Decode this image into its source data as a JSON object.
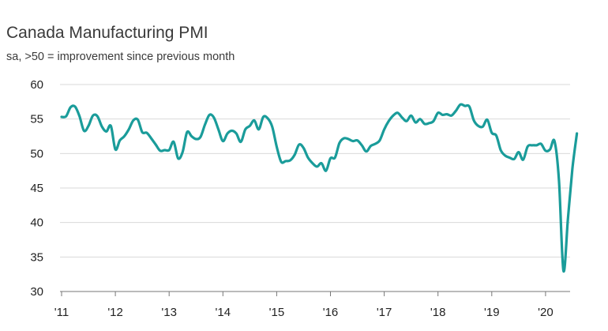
{
  "chart_data": {
    "type": "line",
    "title": "Canada Manufacturing PMI",
    "subtitle": "sa, >50 = improvement since previous month",
    "xlabel": "",
    "ylabel": "",
    "ylim": [
      30,
      60
    ],
    "yticks": [
      30,
      35,
      40,
      45,
      50,
      55,
      60
    ],
    "yticklabels": [
      "30",
      "35",
      "40",
      "45",
      "50",
      "55",
      "60"
    ],
    "xticklabels": [
      "'11",
      "'12",
      "'13",
      "'14",
      "'15",
      "'16",
      "'17",
      "'18",
      "'19",
      "'20"
    ],
    "grid": true,
    "line_color": "#1a9c9a",
    "series": [
      {
        "name": "Canada Manufacturing PMI",
        "start": "2011-01",
        "values": [
          55.3,
          55.4,
          56.7,
          56.8,
          55.4,
          53.3,
          54.0,
          55.5,
          55.4,
          53.9,
          53.2,
          54.0,
          50.6,
          51.9,
          52.5,
          53.5,
          54.8,
          54.9,
          53.1,
          53.0,
          52.2,
          51.3,
          50.4,
          50.5,
          50.5,
          51.7,
          49.3,
          50.2,
          53.1,
          52.5,
          52.1,
          52.4,
          54.2,
          55.6,
          55.2,
          53.5,
          51.8,
          52.9,
          53.3,
          52.9,
          51.7,
          53.5,
          54.0,
          54.8,
          53.5,
          55.3,
          55.1,
          53.9,
          51.0,
          48.8,
          48.9,
          49.0,
          49.8,
          51.3,
          50.8,
          49.4,
          48.6,
          48.1,
          48.6,
          47.5,
          49.3,
          49.4,
          51.5,
          52.2,
          52.1,
          51.8,
          51.9,
          51.2,
          50.3,
          51.1,
          51.4,
          51.9,
          53.5,
          54.7,
          55.5,
          55.9,
          55.2,
          54.7,
          55.5,
          54.5,
          55.0,
          54.3,
          54.4,
          54.7,
          55.9,
          55.6,
          55.7,
          55.5,
          56.2,
          57.1,
          56.9,
          56.8,
          54.8,
          54.0,
          53.9,
          54.9,
          53.0,
          52.6,
          50.5,
          49.7,
          49.4,
          49.2,
          50.2,
          49.1,
          51.0,
          51.2,
          51.2,
          51.4,
          50.4,
          50.6,
          51.8,
          46.1,
          33.0,
          40.6,
          47.8,
          52.9
        ]
      }
    ]
  }
}
